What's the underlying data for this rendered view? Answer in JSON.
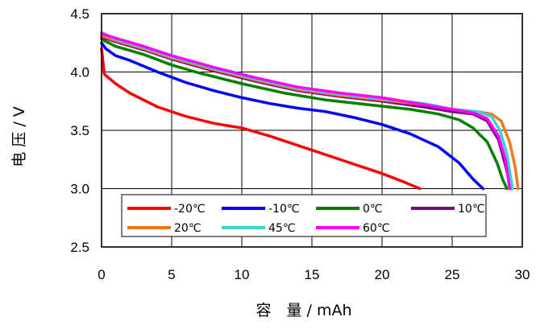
{
  "chart_data": {
    "type": "line",
    "xlabel": "容　量 / mAh",
    "ylabel": "电 压 / V",
    "xlim": [
      0,
      30
    ],
    "ylim": [
      2.5,
      4.5
    ],
    "x_ticks": [
      "0",
      "5",
      "10",
      "15",
      "20",
      "25",
      "30"
    ],
    "y_ticks": [
      "2.5",
      "3.0",
      "3.5",
      "4.0",
      "4.5"
    ],
    "grid": true,
    "legend_position": "lower-center inside plot",
    "series": [
      {
        "name": "-20℃",
        "color": "#ff0000",
        "points": [
          [
            0,
            4.2
          ],
          [
            0.2,
            3.98
          ],
          [
            1,
            3.9
          ],
          [
            2,
            3.82
          ],
          [
            4,
            3.7
          ],
          [
            6,
            3.62
          ],
          [
            8,
            3.56
          ],
          [
            10,
            3.52
          ],
          [
            12,
            3.45
          ],
          [
            14,
            3.37
          ],
          [
            16,
            3.29
          ],
          [
            18,
            3.21
          ],
          [
            20,
            3.13
          ],
          [
            21.5,
            3.06
          ],
          [
            22.7,
            3.0
          ]
        ]
      },
      {
        "name": "-10℃",
        "color": "#0000ff",
        "points": [
          [
            0,
            4.25
          ],
          [
            0.3,
            4.2
          ],
          [
            1,
            4.14
          ],
          [
            2,
            4.1
          ],
          [
            4,
            4.0
          ],
          [
            6,
            3.91
          ],
          [
            8,
            3.84
          ],
          [
            10,
            3.78
          ],
          [
            12,
            3.73
          ],
          [
            14,
            3.69
          ],
          [
            16,
            3.66
          ],
          [
            18,
            3.61
          ],
          [
            20,
            3.55
          ],
          [
            22,
            3.47
          ],
          [
            24,
            3.36
          ],
          [
            25.5,
            3.22
          ],
          [
            26.5,
            3.08
          ],
          [
            27.2,
            3.0
          ]
        ]
      },
      {
        "name": "0℃",
        "color": "#008000",
        "points": [
          [
            0,
            4.28
          ],
          [
            1,
            4.22
          ],
          [
            3,
            4.15
          ],
          [
            5,
            4.06
          ],
          [
            7,
            3.99
          ],
          [
            10,
            3.9
          ],
          [
            13,
            3.82
          ],
          [
            16,
            3.76
          ],
          [
            19,
            3.72
          ],
          [
            22,
            3.68
          ],
          [
            24,
            3.64
          ],
          [
            25.5,
            3.59
          ],
          [
            26.5,
            3.52
          ],
          [
            27.5,
            3.4
          ],
          [
            28.2,
            3.22
          ],
          [
            28.6,
            3.08
          ],
          [
            28.9,
            3.0
          ]
        ]
      },
      {
        "name": "10℃",
        "color": "#800080",
        "points": [
          [
            0,
            4.3
          ],
          [
            1,
            4.26
          ],
          [
            3,
            4.19
          ],
          [
            5,
            4.11
          ],
          [
            8,
            4.01
          ],
          [
            11,
            3.92
          ],
          [
            14,
            3.84
          ],
          [
            17,
            3.79
          ],
          [
            20,
            3.75
          ],
          [
            23,
            3.7
          ],
          [
            25,
            3.66
          ],
          [
            26.5,
            3.64
          ],
          [
            27.5,
            3.58
          ],
          [
            28.3,
            3.42
          ],
          [
            28.8,
            3.2
          ],
          [
            29.2,
            3.0
          ]
        ]
      },
      {
        "name": "20℃",
        "color": "#f07820",
        "points": [
          [
            0,
            4.31
          ],
          [
            1,
            4.27
          ],
          [
            3,
            4.2
          ],
          [
            5,
            4.12
          ],
          [
            8,
            4.02
          ],
          [
            11,
            3.93
          ],
          [
            14,
            3.85
          ],
          [
            17,
            3.8
          ],
          [
            20,
            3.76
          ],
          [
            23,
            3.72
          ],
          [
            25,
            3.68
          ],
          [
            26.8,
            3.66
          ],
          [
            27.8,
            3.64
          ],
          [
            28.5,
            3.58
          ],
          [
            29.1,
            3.4
          ],
          [
            29.5,
            3.18
          ],
          [
            29.7,
            3.0
          ]
        ]
      },
      {
        "name": "45℃",
        "color": "#40d0d0",
        "points": [
          [
            0,
            4.34
          ],
          [
            1,
            4.28
          ],
          [
            3,
            4.21
          ],
          [
            5,
            4.13
          ],
          [
            8,
            4.03
          ],
          [
            11,
            3.94
          ],
          [
            14,
            3.86
          ],
          [
            17,
            3.81
          ],
          [
            20,
            3.77
          ],
          [
            23,
            3.73
          ],
          [
            25,
            3.68
          ],
          [
            26.8,
            3.66
          ],
          [
            27.8,
            3.62
          ],
          [
            28.4,
            3.5
          ],
          [
            28.9,
            3.3
          ],
          [
            29.3,
            3.0
          ]
        ]
      },
      {
        "name": "60℃",
        "color": "#ff00ff",
        "points": [
          [
            0,
            4.33
          ],
          [
            1,
            4.29
          ],
          [
            3,
            4.22
          ],
          [
            5,
            4.14
          ],
          [
            8,
            4.04
          ],
          [
            11,
            3.95
          ],
          [
            14,
            3.87
          ],
          [
            17,
            3.82
          ],
          [
            20,
            3.78
          ],
          [
            23,
            3.72
          ],
          [
            25,
            3.68
          ],
          [
            26.5,
            3.65
          ],
          [
            27.5,
            3.6
          ],
          [
            28.3,
            3.45
          ],
          [
            28.8,
            3.25
          ],
          [
            29.1,
            3.0
          ]
        ]
      }
    ]
  }
}
